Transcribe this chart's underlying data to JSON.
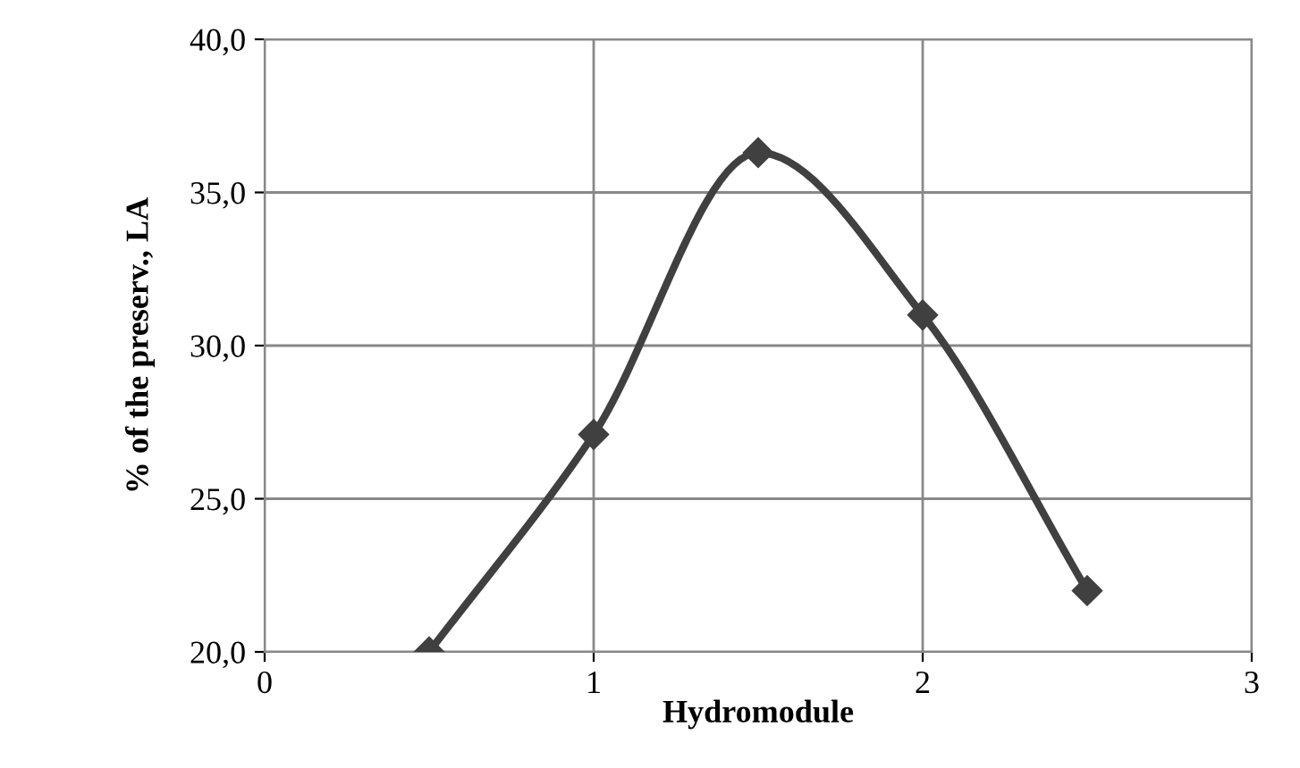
{
  "chart_data": {
    "type": "line",
    "xlabel": "Hydromodule",
    "ylabel": "% of the preserv., LA",
    "x": [
      0.5,
      1,
      1.5,
      2,
      2.5
    ],
    "series": [
      {
        "color": "#404040",
        "values": [
          20.0,
          27.1,
          36.3,
          31.0,
          22.0
        ]
      }
    ],
    "xlim": [
      0,
      3
    ],
    "xticks": [
      0,
      1,
      2,
      3
    ],
    "ylim": [
      20,
      40
    ],
    "yticks": [
      {
        "value": 20,
        "label": "20,0"
      },
      {
        "value": 25,
        "label": "25,0"
      },
      {
        "value": 30,
        "label": "30,0"
      },
      {
        "value": 35,
        "label": "35,0"
      },
      {
        "value": 40,
        "label": "40,0"
      }
    ],
    "grid": true,
    "marker": "diamond",
    "line_style": "solid",
    "legend": false
  }
}
